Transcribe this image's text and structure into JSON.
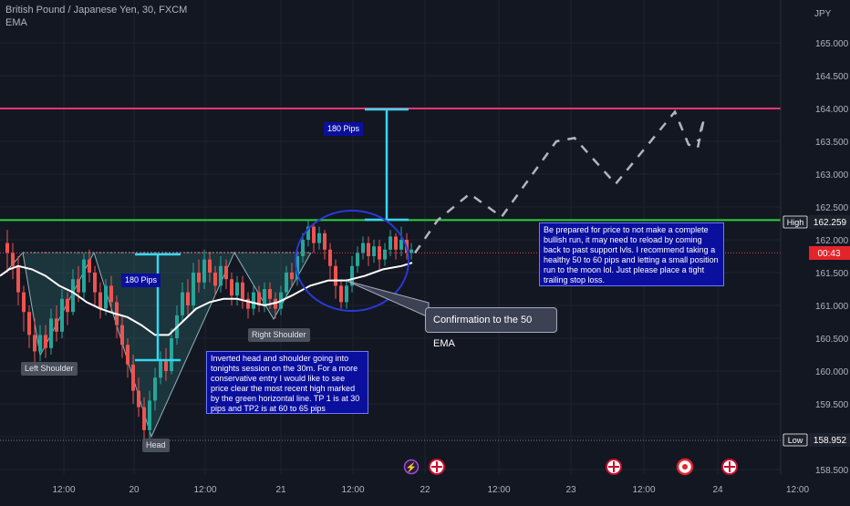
{
  "legend": {
    "symbol": "British Pound / Japanese Yen, 30, FXCM",
    "indicator": "EMA"
  },
  "chart_data": {
    "type": "candlestick",
    "currency": "JPY",
    "ylim": [
      158.45,
      165.45
    ],
    "y_ticks": [
      "165.000",
      "164.500",
      "164.000",
      "163.500",
      "163.000",
      "162.500",
      "162.000",
      "161.500",
      "161.000",
      "160.500",
      "160.000",
      "159.500",
      "159.000",
      "158.500"
    ],
    "x_ticks": [
      "12:00",
      "20",
      "12:00",
      "21",
      "12:00",
      "22",
      "12:00",
      "23",
      "12:00",
      "24",
      "12:00"
    ],
    "high_label": "High",
    "high_value": "162.259",
    "low_label": "Low",
    "low_value": "158.952",
    "countdown": "00:43",
    "resistance_level": 164.0,
    "neckline_level": 162.3,
    "price_line": 161.8,
    "pips_labels": [
      "180 Pips",
      "180 Pips"
    ],
    "shoulder_labels": {
      "left": "Left Shoulder",
      "head": "Head",
      "right": "Right Shoulder"
    },
    "callout": "Confirmation to the 50 EMA",
    "note_left": "Inverted head and shoulder going into tonights session on the 30m. For a more conservative entry I would like to see price clear the most recent high marked by the green horizontal line. TP 1 is at 30 pips and TP2 is at 60 to 65 pips",
    "note_right": "Be prepared for price to not make a complete bullish run, it may need to reload by coming back to past support lvls. I recommend taking a healthy 50 to 60 pips and letting a small position run to the moon lol. Just please place a tight trailing stop loss.",
    "ema": [
      [
        0,
        161.45
      ],
      [
        10,
        161.55
      ],
      [
        20,
        161.6
      ],
      [
        35,
        161.55
      ],
      [
        50,
        161.45
      ],
      [
        65,
        161.3
      ],
      [
        80,
        161.2
      ],
      [
        95,
        161.05
      ],
      [
        110,
        160.95
      ],
      [
        125,
        160.88
      ],
      [
        140,
        160.82
      ],
      [
        155,
        160.7
      ],
      [
        170,
        160.55
      ],
      [
        185,
        160.55
      ],
      [
        200,
        160.75
      ],
      [
        215,
        160.95
      ],
      [
        230,
        161.05
      ],
      [
        245,
        161.1
      ],
      [
        260,
        161.1
      ],
      [
        275,
        161.05
      ],
      [
        290,
        161.0
      ],
      [
        305,
        161.05
      ],
      [
        320,
        161.15
      ],
      [
        340,
        161.3
      ],
      [
        360,
        161.38
      ],
      [
        380,
        161.38
      ],
      [
        400,
        161.45
      ],
      [
        420,
        161.55
      ],
      [
        440,
        161.6
      ],
      [
        452,
        161.65
      ]
    ],
    "projection": [
      [
        455,
        161.8
      ],
      [
        480,
        162.3
      ],
      [
        515,
        162.7
      ],
      [
        550,
        162.35
      ],
      [
        610,
        163.5
      ],
      [
        630,
        163.55
      ],
      [
        675,
        162.85
      ],
      [
        740,
        163.95
      ],
      [
        755,
        163.45
      ],
      [
        765,
        163.4
      ],
      [
        772,
        163.85
      ],
      [
        765,
        163.5
      ]
    ],
    "candles": [
      [
        8,
        161.95,
        161.8,
        162.15,
        161.5
      ],
      [
        14,
        161.8,
        161.6,
        161.95,
        161.4
      ],
      [
        20,
        161.6,
        161.2,
        161.75,
        161.0
      ],
      [
        26,
        161.2,
        160.9,
        161.3,
        160.6
      ],
      [
        32,
        160.9,
        160.55,
        161.0,
        160.35
      ],
      [
        38,
        160.55,
        160.3,
        160.8,
        160.1
      ],
      [
        44,
        160.3,
        160.55,
        160.7,
        160.15
      ],
      [
        50,
        160.55,
        160.35,
        160.7,
        160.2
      ],
      [
        56,
        160.35,
        160.8,
        160.95,
        160.25
      ],
      [
        62,
        160.8,
        160.6,
        161.0,
        160.45
      ],
      [
        68,
        160.6,
        161.1,
        161.25,
        160.5
      ],
      [
        74,
        161.1,
        160.9,
        161.2,
        160.7
      ],
      [
        80,
        160.9,
        161.4,
        161.55,
        160.85
      ],
      [
        86,
        161.4,
        161.2,
        161.6,
        161.05
      ],
      [
        92,
        161.2,
        161.7,
        161.8,
        161.1
      ],
      [
        98,
        161.7,
        161.5,
        161.85,
        161.35
      ],
      [
        104,
        161.5,
        161.2,
        161.6,
        161.0
      ],
      [
        110,
        161.2,
        160.95,
        161.35,
        160.8
      ],
      [
        116,
        160.95,
        161.3,
        161.4,
        160.85
      ],
      [
        122,
        161.3,
        161.05,
        161.45,
        160.9
      ],
      [
        128,
        161.05,
        160.7,
        161.15,
        160.5
      ],
      [
        134,
        160.7,
        160.4,
        160.85,
        160.2
      ],
      [
        140,
        160.4,
        160.1,
        160.5,
        159.9
      ],
      [
        146,
        160.1,
        159.7,
        160.25,
        159.5
      ],
      [
        152,
        159.7,
        159.45,
        159.9,
        159.3
      ],
      [
        158,
        159.45,
        159.1,
        159.6,
        158.95
      ],
      [
        164,
        159.1,
        159.55,
        159.7,
        158.95
      ],
      [
        170,
        159.55,
        159.9,
        160.05,
        159.4
      ],
      [
        176,
        159.9,
        160.15,
        160.3,
        159.8
      ],
      [
        182,
        160.15,
        160.0,
        160.35,
        159.85
      ],
      [
        188,
        160.0,
        160.5,
        160.65,
        159.95
      ],
      [
        194,
        160.5,
        160.85,
        161.0,
        160.4
      ],
      [
        200,
        160.85,
        161.2,
        161.35,
        160.75
      ],
      [
        206,
        161.2,
        161.0,
        161.4,
        160.85
      ],
      [
        212,
        161.0,
        161.5,
        161.65,
        160.9
      ],
      [
        218,
        161.5,
        161.35,
        161.7,
        161.2
      ],
      [
        224,
        161.35,
        161.7,
        161.85,
        161.25
      ],
      [
        230,
        161.7,
        161.5,
        161.8,
        161.35
      ],
      [
        236,
        161.5,
        161.3,
        161.6,
        161.15
      ],
      [
        242,
        161.3,
        161.6,
        161.75,
        161.2
      ],
      [
        248,
        161.6,
        161.4,
        161.7,
        161.25
      ],
      [
        254,
        161.4,
        161.15,
        161.5,
        161.0
      ],
      [
        260,
        161.15,
        161.35,
        161.45,
        161.0
      ],
      [
        266,
        161.35,
        161.1,
        161.45,
        160.95
      ],
      [
        272,
        161.1,
        160.95,
        161.2,
        160.8
      ],
      [
        278,
        160.95,
        161.2,
        161.3,
        160.85
      ],
      [
        284,
        161.2,
        161.0,
        161.3,
        160.9
      ],
      [
        290,
        161.0,
        161.25,
        161.35,
        160.9
      ],
      [
        296,
        161.25,
        161.1,
        161.35,
        160.95
      ],
      [
        302,
        161.1,
        160.95,
        161.2,
        160.8
      ],
      [
        308,
        160.95,
        161.2,
        161.3,
        160.85
      ],
      [
        314,
        161.2,
        161.5,
        161.6,
        161.1
      ],
      [
        320,
        161.5,
        161.4,
        161.65,
        161.3
      ],
      [
        326,
        161.4,
        161.75,
        161.85,
        161.3
      ],
      [
        332,
        161.75,
        162.0,
        162.1,
        161.65
      ],
      [
        338,
        162.0,
        162.2,
        162.3,
        161.9
      ],
      [
        344,
        162.2,
        161.95,
        162.25,
        161.8
      ],
      [
        350,
        161.95,
        162.1,
        162.2,
        161.85
      ],
      [
        356,
        162.1,
        161.85,
        162.15,
        161.7
      ],
      [
        362,
        161.85,
        161.6,
        161.95,
        161.4
      ],
      [
        368,
        161.6,
        161.3,
        161.7,
        161.1
      ],
      [
        374,
        161.3,
        161.05,
        161.4,
        160.95
      ],
      [
        380,
        161.05,
        161.3,
        161.4,
        160.95
      ],
      [
        386,
        161.3,
        161.6,
        161.75,
        161.2
      ],
      [
        392,
        161.6,
        161.8,
        161.9,
        161.5
      ],
      [
        398,
        161.8,
        161.95,
        162.05,
        161.7
      ],
      [
        404,
        161.95,
        161.75,
        162.05,
        161.6
      ],
      [
        410,
        161.75,
        161.9,
        162.0,
        161.65
      ],
      [
        416,
        161.9,
        161.7,
        162.0,
        161.55
      ],
      [
        422,
        161.7,
        161.85,
        161.95,
        161.6
      ],
      [
        428,
        161.85,
        162.05,
        162.15,
        161.75
      ],
      [
        434,
        162.05,
        161.85,
        162.1,
        161.7
      ],
      [
        440,
        161.85,
        162.0,
        162.2,
        161.75
      ],
      [
        446,
        162.0,
        161.8,
        162.1,
        161.7
      ],
      [
        451,
        161.8,
        161.85,
        161.95,
        161.7
      ]
    ]
  }
}
